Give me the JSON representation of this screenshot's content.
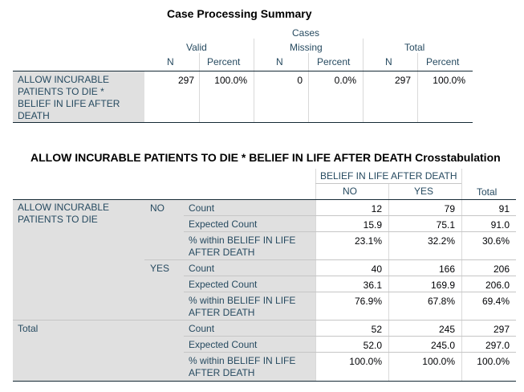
{
  "summary": {
    "title": "Case Processing Summary",
    "cases_label": "Cases",
    "groups": [
      "Valid",
      "Missing",
      "Total"
    ],
    "subheaders": [
      "N",
      "Percent",
      "N",
      "Percent",
      "N",
      "Percent"
    ],
    "row_label": "ALLOW INCURABLE PATIENTS TO DIE * BELIEF IN LIFE AFTER DEATH",
    "values": [
      "297",
      "100.0%",
      "0",
      "0.0%",
      "297",
      "100.0%"
    ]
  },
  "crosstab": {
    "title": "ALLOW INCURABLE PATIENTS TO DIE * BELIEF IN LIFE AFTER DEATH Crosstabulation",
    "col_var": "BELIEF IN LIFE AFTER DEATH",
    "col_no": "NO",
    "col_yes": "YES",
    "col_total": "Total",
    "row_var": "ALLOW INCURABLE PATIENTS TO DIE",
    "total_label": "Total",
    "groups": [
      {
        "label": "NO",
        "rows": [
          {
            "stat": "Count",
            "no": "12",
            "yes": "79",
            "total": "91"
          },
          {
            "stat": "Expected Count",
            "no": "15.9",
            "yes": "75.1",
            "total": "91.0"
          },
          {
            "stat": "% within BELIEF IN LIFE AFTER DEATH",
            "no": "23.1%",
            "yes": "32.2%",
            "total": "30.6%"
          }
        ]
      },
      {
        "label": "YES",
        "rows": [
          {
            "stat": "Count",
            "no": "40",
            "yes": "166",
            "total": "206"
          },
          {
            "stat": "Expected Count",
            "no": "36.1",
            "yes": "169.9",
            "total": "206.0"
          },
          {
            "stat": "% within BELIEF IN LIFE AFTER DEATH",
            "no": "76.9%",
            "yes": "67.8%",
            "total": "69.4%"
          }
        ]
      },
      {
        "label": "",
        "rows": [
          {
            "stat": "Count",
            "no": "52",
            "yes": "245",
            "total": "297"
          },
          {
            "stat": "Expected Count",
            "no": "52.0",
            "yes": "245.0",
            "total": "297.0"
          },
          {
            "stat": "% within BELIEF IN LIFE AFTER DEATH",
            "no": "100.0%",
            "yes": "100.0%",
            "total": "100.0%"
          }
        ]
      }
    ]
  }
}
